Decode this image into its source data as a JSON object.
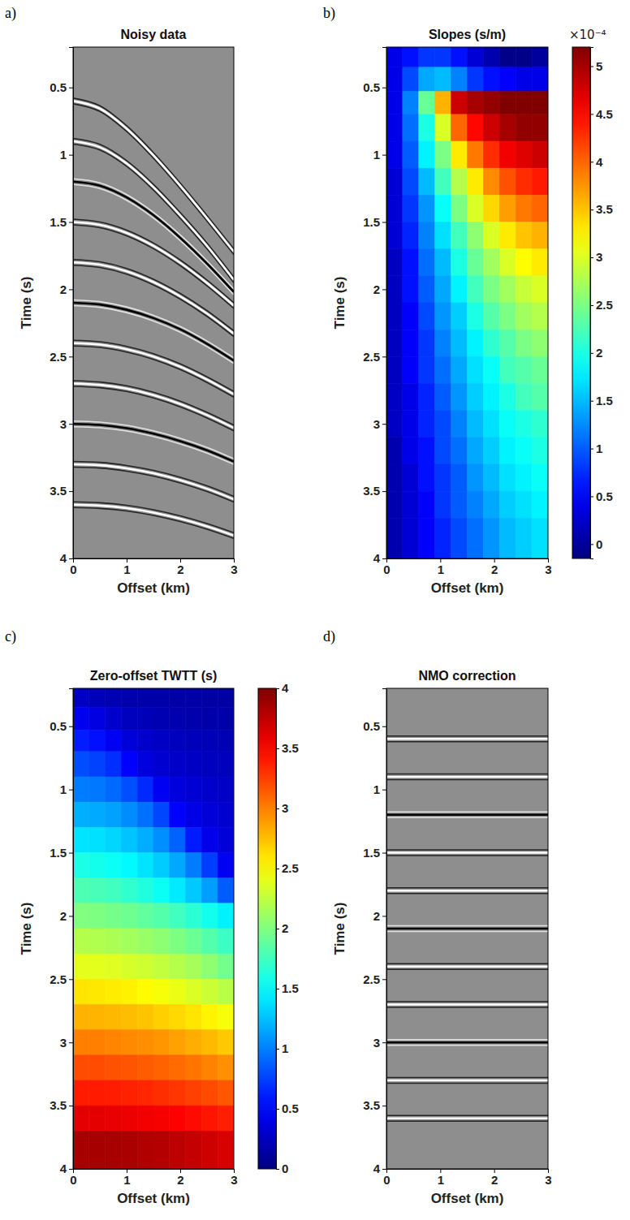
{
  "chart_data": [
    {
      "type": "line",
      "panel_label": "a)",
      "title": "Noisy data",
      "x_label": "Offset (km)",
      "y_label": "Time (s)",
      "xlim": [
        0,
        3
      ],
      "ylim": [
        0.2,
        4
      ],
      "xticks": [
        0,
        1,
        2,
        3
      ],
      "yticks": [
        0.5,
        1,
        1.5,
        2,
        2.5,
        3,
        3.5,
        4
      ],
      "x": [
        0,
        0.5,
        1,
        1.5,
        2,
        2.5,
        3
      ],
      "series": [
        {
          "color": "white",
          "values": [
            0.6,
            0.657,
            0.806,
            1.005,
            1.231,
            1.472,
            1.72
          ]
        },
        {
          "color": "white",
          "values": [
            0.9,
            0.944,
            1.065,
            1.241,
            1.451,
            1.678,
            1.93
          ]
        },
        {
          "color": "black",
          "values": [
            1.2,
            1.23,
            1.317,
            1.449,
            1.617,
            1.809,
            2.02
          ]
        },
        {
          "color": "white",
          "values": [
            1.5,
            1.521,
            1.581,
            1.677,
            1.803,
            1.953,
            2.121
          ]
        },
        {
          "color": "white",
          "values": [
            1.8,
            1.817,
            1.866,
            1.946,
            2.052,
            2.18,
            2.33
          ]
        },
        {
          "color": "black",
          "values": [
            2.1,
            2.113,
            2.152,
            2.214,
            2.297,
            2.405,
            2.53
          ]
        },
        {
          "color": "white",
          "values": [
            2.4,
            2.411,
            2.445,
            2.499,
            2.575,
            2.671,
            2.78
          ]
        },
        {
          "color": "white",
          "values": [
            2.7,
            2.71,
            2.738,
            2.786,
            2.852,
            2.935,
            3.03
          ]
        },
        {
          "color": "black",
          "values": [
            3.0,
            3.008,
            3.032,
            3.073,
            3.128,
            3.196,
            3.28
          ]
        },
        {
          "color": "white",
          "values": [
            3.3,
            3.307,
            3.33,
            3.367,
            3.418,
            3.482,
            3.56
          ]
        },
        {
          "color": "white",
          "values": [
            3.6,
            3.607,
            3.626,
            3.659,
            3.705,
            3.762,
            3.83
          ]
        }
      ]
    },
    {
      "type": "heatmap",
      "panel_label": "b)",
      "title": "Slopes (s/m)",
      "x_label": "Offset (km)",
      "y_label": "Time (s)",
      "xlim": [
        0,
        3
      ],
      "ylim": [
        0.2,
        4
      ],
      "xticks": [
        0,
        1,
        2,
        3
      ],
      "yticks": [
        0.5,
        1,
        1.5,
        2,
        2.5,
        3,
        3.5,
        4
      ],
      "x_bins": [
        0,
        0.3,
        0.6,
        0.9,
        1.2,
        1.5,
        1.8,
        2.1,
        2.4,
        2.7,
        3
      ],
      "y_bins": [
        0.2,
        0.35,
        0.53,
        0.7,
        0.9,
        1.1,
        1.3,
        1.5,
        1.7,
        1.9,
        2.1,
        2.3,
        2.5,
        2.7,
        2.9,
        3.1,
        3.3,
        3.5,
        3.7,
        4
      ],
      "values": [
        [
          0.4,
          0.6,
          0.8,
          0.8,
          0.6,
          0.3,
          0.1,
          -0.1,
          -0.1,
          0.0
        ],
        [
          0.4,
          0.9,
          1.4,
          1.5,
          1.2,
          0.8,
          0.6,
          0.5,
          0.4,
          0.4
        ],
        [
          0.4,
          1.2,
          2.4,
          3.6,
          4.8,
          5.0,
          5.1,
          5.2,
          5.2,
          5.2
        ],
        [
          0.4,
          1.1,
          2.0,
          3.0,
          4.0,
          4.5,
          4.8,
          5.0,
          5.1,
          5.1
        ],
        [
          0.4,
          1.0,
          1.8,
          2.5,
          3.3,
          3.9,
          4.3,
          4.6,
          4.7,
          4.8
        ],
        [
          0.3,
          0.9,
          1.5,
          2.2,
          2.8,
          3.3,
          3.8,
          4.1,
          4.3,
          4.4
        ],
        [
          0.3,
          0.8,
          1.3,
          1.9,
          2.5,
          3.0,
          3.4,
          3.7,
          3.9,
          4.0
        ],
        [
          0.3,
          0.7,
          1.2,
          1.7,
          2.2,
          2.6,
          3.0,
          3.3,
          3.5,
          3.6
        ],
        [
          0.2,
          0.6,
          1.1,
          1.5,
          2.0,
          2.4,
          2.7,
          3.0,
          3.2,
          3.3
        ],
        [
          0.2,
          0.6,
          1.0,
          1.4,
          1.8,
          2.2,
          2.5,
          2.7,
          2.9,
          3.0
        ],
        [
          0.2,
          0.5,
          0.9,
          1.3,
          1.6,
          2.0,
          2.3,
          2.5,
          2.7,
          2.8
        ],
        [
          0.2,
          0.5,
          0.8,
          1.2,
          1.5,
          1.8,
          2.1,
          2.3,
          2.5,
          2.6
        ],
        [
          0.2,
          0.5,
          0.8,
          1.1,
          1.4,
          1.7,
          1.9,
          2.2,
          2.3,
          2.4
        ],
        [
          0.2,
          0.4,
          0.7,
          1.0,
          1.3,
          1.6,
          1.8,
          2.0,
          2.2,
          2.3
        ],
        [
          0.2,
          0.4,
          0.7,
          0.9,
          1.2,
          1.5,
          1.7,
          1.9,
          2.0,
          2.1
        ],
        [
          0.1,
          0.4,
          0.6,
          0.9,
          1.1,
          1.4,
          1.6,
          1.8,
          1.9,
          2.0
        ],
        [
          0.1,
          0.3,
          0.6,
          0.8,
          1.0,
          1.3,
          1.5,
          1.7,
          1.8,
          1.9
        ],
        [
          0.1,
          0.3,
          0.5,
          0.8,
          1.0,
          1.2,
          1.4,
          1.6,
          1.7,
          1.8
        ],
        [
          0.1,
          0.3,
          0.5,
          0.7,
          0.9,
          1.1,
          1.3,
          1.5,
          1.6,
          1.7
        ]
      ],
      "colorbar": {
        "range": [
          -0.15,
          5.2
        ],
        "ticks": [
          0,
          0.5,
          1,
          1.5,
          2,
          2.5,
          3,
          3.5,
          4,
          4.5,
          5
        ],
        "multiplier": "×10⁻⁴"
      }
    },
    {
      "type": "heatmap",
      "panel_label": "c)",
      "title": "Zero-offset TWTT (s)",
      "x_label": "Offset (km)",
      "y_label": "Time (s)",
      "xlim": [
        0,
        3
      ],
      "ylim": [
        0.2,
        4
      ],
      "xticks": [
        0,
        1,
        2,
        3
      ],
      "yticks": [
        0.5,
        1,
        1.5,
        2,
        2.5,
        3,
        3.5,
        4
      ],
      "x_bins": [
        0,
        0.3,
        0.6,
        0.9,
        1.2,
        1.5,
        1.8,
        2.1,
        2.4,
        2.7,
        3
      ],
      "y_bins": [
        0.2,
        0.35,
        0.53,
        0.7,
        0.9,
        1.1,
        1.3,
        1.5,
        1.7,
        1.9,
        2.1,
        2.3,
        2.5,
        2.7,
        2.9,
        3.1,
        3.3,
        3.5,
        3.7,
        4
      ],
      "values": [
        [
          0.27,
          0.22,
          0.2,
          0.18,
          0.17,
          0.16,
          0.15,
          0.15,
          0.14,
          0.14
        ],
        [
          0.44,
          0.38,
          0.3,
          0.25,
          0.22,
          0.2,
          0.19,
          0.18,
          0.17,
          0.17
        ],
        [
          0.61,
          0.56,
          0.45,
          0.35,
          0.3,
          0.27,
          0.25,
          0.23,
          0.22,
          0.21
        ],
        [
          0.8,
          0.76,
          0.68,
          0.5,
          0.37,
          0.32,
          0.29,
          0.27,
          0.25,
          0.24
        ],
        [
          0.99,
          0.97,
          0.91,
          0.81,
          0.66,
          0.45,
          0.37,
          0.33,
          0.3,
          0.28
        ],
        [
          1.19,
          1.17,
          1.13,
          1.05,
          0.94,
          0.77,
          0.5,
          0.4,
          0.35,
          0.32
        ],
        [
          1.4,
          1.38,
          1.34,
          1.27,
          1.18,
          1.06,
          0.89,
          0.6,
          0.42,
          0.36
        ],
        [
          1.6,
          1.58,
          1.54,
          1.48,
          1.4,
          1.3,
          1.16,
          0.99,
          0.74,
          0.45
        ],
        [
          1.8,
          1.78,
          1.75,
          1.69,
          1.62,
          1.54,
          1.42,
          1.29,
          1.12,
          0.86
        ],
        [
          2.0,
          1.99,
          1.96,
          1.93,
          1.88,
          1.83,
          1.75,
          1.67,
          1.57,
          1.45
        ],
        [
          2.2,
          2.19,
          2.17,
          2.14,
          2.1,
          2.05,
          1.99,
          1.92,
          1.83,
          1.73
        ],
        [
          2.4,
          2.39,
          2.37,
          2.34,
          2.31,
          2.26,
          2.21,
          2.15,
          2.06,
          1.95
        ],
        [
          2.6,
          2.59,
          2.57,
          2.55,
          2.51,
          2.47,
          2.42,
          2.36,
          2.3,
          2.22
        ],
        [
          2.8,
          2.79,
          2.78,
          2.76,
          2.73,
          2.69,
          2.65,
          2.6,
          2.54,
          2.47
        ],
        [
          3.0,
          3.0,
          2.98,
          2.96,
          2.94,
          2.91,
          2.87,
          2.82,
          2.77,
          2.71
        ],
        [
          3.2,
          3.2,
          3.18,
          3.17,
          3.14,
          3.11,
          3.08,
          3.04,
          2.99,
          2.93
        ],
        [
          3.4,
          3.4,
          3.39,
          3.37,
          3.35,
          3.32,
          3.29,
          3.25,
          3.21,
          3.16
        ],
        [
          3.6,
          3.6,
          3.59,
          3.57,
          3.55,
          3.53,
          3.5,
          3.46,
          3.42,
          3.38
        ],
        [
          3.85,
          3.85,
          3.84,
          3.83,
          3.81,
          3.79,
          3.76,
          3.73,
          3.69,
          3.65
        ]
      ],
      "colorbar": {
        "range": [
          0,
          4
        ],
        "ticks": [
          0,
          0.5,
          1,
          1.5,
          2,
          2.5,
          3,
          3.5,
          4
        ]
      }
    },
    {
      "type": "line",
      "panel_label": "d)",
      "title": "NMO correction",
      "x_label": "Offset (km)",
      "y_label": "Time (s)",
      "xlim": [
        0,
        3
      ],
      "ylim": [
        0.2,
        4
      ],
      "xticks": [
        0,
        1,
        2,
        3
      ],
      "yticks": [
        0.5,
        1,
        1.5,
        2,
        2.5,
        3,
        3.5,
        4
      ],
      "x": [
        0,
        3
      ],
      "series": [
        {
          "color": "white",
          "values": [
            0.6,
            0.6
          ]
        },
        {
          "color": "white",
          "values": [
            0.9,
            0.9
          ]
        },
        {
          "color": "black",
          "values": [
            1.2,
            1.2
          ]
        },
        {
          "color": "white",
          "values": [
            1.5,
            1.5
          ]
        },
        {
          "color": "white",
          "values": [
            1.8,
            1.8
          ]
        },
        {
          "color": "black",
          "values": [
            2.1,
            2.1
          ]
        },
        {
          "color": "white",
          "values": [
            2.4,
            2.4
          ]
        },
        {
          "color": "white",
          "values": [
            2.7,
            2.7
          ]
        },
        {
          "color": "black",
          "values": [
            3.0,
            3.0
          ]
        },
        {
          "color": "white",
          "values": [
            3.3,
            3.3
          ]
        },
        {
          "color": "white",
          "values": [
            3.6,
            3.6
          ]
        }
      ]
    }
  ]
}
